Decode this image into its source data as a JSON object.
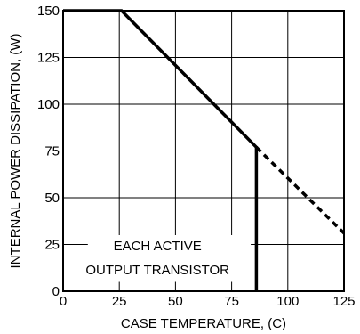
{
  "chart_data": {
    "type": "line",
    "title": "",
    "xlabel": "CASE TEMPERATURE, (C)",
    "ylabel": "INTERNAL POWER DISSIPATION, (W)",
    "xlim": [
      0,
      125
    ],
    "ylim": [
      0,
      150
    ],
    "x_ticks": [
      0,
      25,
      50,
      75,
      100,
      125
    ],
    "y_ticks": [
      0,
      25,
      50,
      75,
      100,
      125,
      150
    ],
    "x_tick_labels": [
      "0",
      "25",
      "50",
      "75",
      "100",
      "125"
    ],
    "y_tick_labels": [
      "0",
      "25",
      "50",
      "75",
      "100",
      "125",
      "150"
    ],
    "grid": true,
    "series": [
      {
        "style": "solid",
        "x": [
          0,
          26,
          86,
          86
        ],
        "y": [
          150,
          150,
          77,
          0
        ]
      },
      {
        "style": "dashed",
        "x": [
          86,
          125
        ],
        "y": [
          77,
          31
        ]
      }
    ],
    "annotation": {
      "lines": [
        "EACH ACTIVE",
        "OUTPUT TRANSISTOR"
      ]
    },
    "colors": {
      "line": "#000000",
      "grid": "#000000",
      "background": "#ffffff"
    }
  }
}
